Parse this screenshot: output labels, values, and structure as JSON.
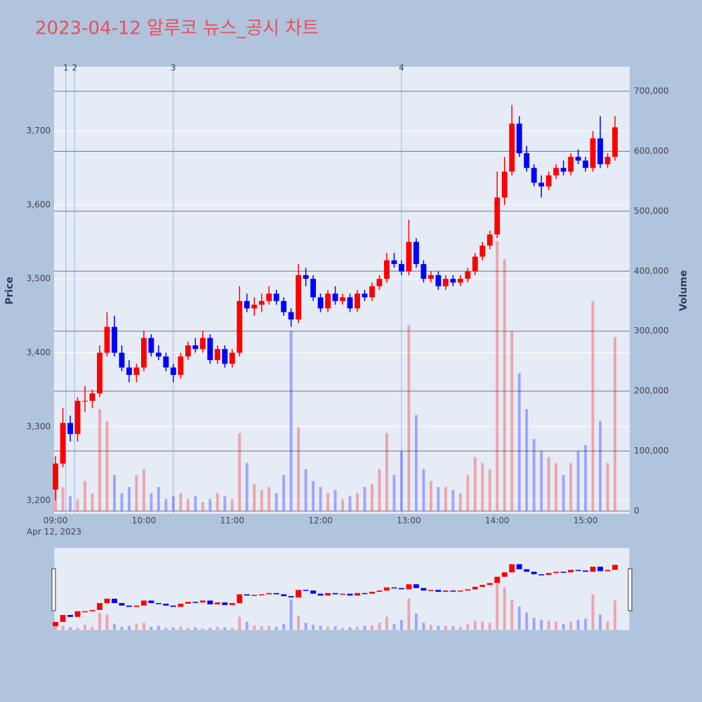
{
  "chart_data": {
    "type": "candlestick",
    "title": "2023-04-12 알루코 뉴스_공시 차트",
    "y_label": "Price",
    "y2_label": "Volume",
    "x_date_label": "Apr 12, 2023",
    "up_color": "#ff0000",
    "down_color": "#0000ff",
    "grid": true,
    "range_slider": true,
    "x": [
      "09:00",
      "09:05",
      "09:10",
      "09:15",
      "09:20",
      "09:25",
      "09:30",
      "09:35",
      "09:40",
      "09:45",
      "09:50",
      "09:55",
      "10:00",
      "10:05",
      "10:10",
      "10:15",
      "10:20",
      "10:25",
      "10:30",
      "10:35",
      "10:40",
      "10:45",
      "10:50",
      "10:55",
      "11:00",
      "11:05",
      "11:10",
      "11:15",
      "11:20",
      "11:25",
      "11:30",
      "11:35",
      "11:40",
      "11:45",
      "11:50",
      "11:55",
      "12:00",
      "12:05",
      "12:10",
      "12:15",
      "12:20",
      "12:25",
      "12:30",
      "12:35",
      "12:40",
      "12:45",
      "12:50",
      "12:55",
      "13:00",
      "13:05",
      "13:10",
      "13:15",
      "13:20",
      "13:25",
      "13:30",
      "13:35",
      "13:40",
      "13:45",
      "13:50",
      "13:55",
      "14:00",
      "14:05",
      "14:10",
      "14:15",
      "14:20",
      "14:25",
      "14:30",
      "14:35",
      "14:40",
      "14:45",
      "14:50",
      "14:55",
      "15:00",
      "15:05",
      "15:10",
      "15:15",
      "15:20"
    ],
    "open": [
      3215,
      3250,
      3305,
      3290,
      3335,
      3335,
      3345,
      3400,
      3435,
      3400,
      3380,
      3370,
      3380,
      3420,
      3400,
      3395,
      3380,
      3370,
      3395,
      3410,
      3405,
      3420,
      3390,
      3405,
      3385,
      3400,
      3470,
      3460,
      3465,
      3470,
      3480,
      3470,
      3455,
      3445,
      3505,
      3500,
      3475,
      3460,
      3480,
      3470,
      3475,
      3460,
      3480,
      3475,
      3490,
      3500,
      3525,
      3520,
      3510,
      3550,
      3520,
      3500,
      3505,
      3490,
      3500,
      3495,
      3500,
      3510,
      3530,
      3545,
      3560,
      3610,
      3645,
      3710,
      3670,
      3650,
      3630,
      3625,
      3640,
      3650,
      3645,
      3665,
      3660,
      3650,
      3690,
      3655,
      3665
    ],
    "high": [
      3260,
      3325,
      3315,
      3340,
      3355,
      3350,
      3410,
      3455,
      3450,
      3410,
      3390,
      3385,
      3430,
      3425,
      3410,
      3400,
      3385,
      3400,
      3415,
      3420,
      3430,
      3425,
      3410,
      3410,
      3405,
      3490,
      3480,
      3475,
      3480,
      3490,
      3485,
      3475,
      3460,
      3520,
      3515,
      3505,
      3480,
      3485,
      3490,
      3480,
      3480,
      3485,
      3485,
      3495,
      3505,
      3535,
      3535,
      3525,
      3580,
      3555,
      3525,
      3510,
      3510,
      3505,
      3505,
      3505,
      3515,
      3535,
      3550,
      3565,
      3645,
      3665,
      3735,
      3720,
      3680,
      3655,
      3640,
      3645,
      3655,
      3660,
      3670,
      3675,
      3665,
      3700,
      3720,
      3670,
      3720
    ],
    "low": [
      3200,
      3245,
      3280,
      3280,
      3320,
      3325,
      3340,
      3395,
      3395,
      3375,
      3360,
      3360,
      3375,
      3395,
      3390,
      3375,
      3360,
      3365,
      3390,
      3400,
      3400,
      3385,
      3385,
      3380,
      3380,
      3395,
      3455,
      3450,
      3455,
      3465,
      3465,
      3450,
      3435,
      3440,
      3490,
      3470,
      3455,
      3455,
      3465,
      3465,
      3455,
      3455,
      3470,
      3470,
      3485,
      3495,
      3515,
      3505,
      3505,
      3515,
      3495,
      3495,
      3485,
      3485,
      3490,
      3490,
      3495,
      3505,
      3525,
      3540,
      3555,
      3600,
      3640,
      3665,
      3645,
      3625,
      3610,
      3620,
      3635,
      3640,
      3640,
      3655,
      3645,
      3645,
      3650,
      3650,
      3660
    ],
    "close": [
      3250,
      3305,
      3290,
      3335,
      3335,
      3345,
      3400,
      3435,
      3400,
      3380,
      3370,
      3380,
      3420,
      3400,
      3395,
      3380,
      3370,
      3395,
      3410,
      3405,
      3420,
      3390,
      3405,
      3385,
      3400,
      3470,
      3460,
      3465,
      3470,
      3480,
      3470,
      3455,
      3445,
      3505,
      3500,
      3475,
      3460,
      3480,
      3470,
      3475,
      3460,
      3480,
      3475,
      3490,
      3500,
      3525,
      3520,
      3510,
      3550,
      3520,
      3500,
      3505,
      3490,
      3500,
      3495,
      3500,
      3510,
      3530,
      3545,
      3560,
      3610,
      3645,
      3710,
      3670,
      3650,
      3630,
      3625,
      3640,
      3650,
      3645,
      3665,
      3660,
      3650,
      3690,
      3655,
      3665,
      3705
    ],
    "volume": [
      60000,
      40000,
      25000,
      20000,
      50000,
      30000,
      170000,
      150000,
      60000,
      30000,
      40000,
      60000,
      70000,
      30000,
      40000,
      20000,
      25000,
      30000,
      20000,
      25000,
      15000,
      20000,
      30000,
      25000,
      20000,
      130000,
      80000,
      45000,
      35000,
      40000,
      30000,
      60000,
      300000,
      140000,
      70000,
      50000,
      40000,
      30000,
      35000,
      20000,
      25000,
      30000,
      40000,
      45000,
      70000,
      130000,
      60000,
      100000,
      310000,
      160000,
      70000,
      50000,
      40000,
      40000,
      35000,
      30000,
      60000,
      90000,
      80000,
      70000,
      450000,
      420000,
      300000,
      230000,
      170000,
      120000,
      100000,
      90000,
      80000,
      60000,
      80000,
      100000,
      110000,
      350000,
      150000,
      80000,
      290000
    ],
    "xlim": [
      "08:59",
      "15:30"
    ],
    "xticks": [
      "09:00",
      "10:00",
      "11:00",
      "12:00",
      "13:00",
      "14:00",
      "15:00"
    ],
    "ylim": [
      3182,
      3787
    ],
    "yticks": [
      {
        "value": 3200,
        "label": "3,200"
      },
      {
        "value": 3300,
        "label": "3,300"
      },
      {
        "value": 3400,
        "label": "3,400"
      },
      {
        "value": 3500,
        "label": "3,500"
      },
      {
        "value": 3600,
        "label": "3,600"
      },
      {
        "value": 3700,
        "label": "3,700"
      }
    ],
    "y2lim": [
      -4700,
      741000
    ],
    "y2ticks": [
      0,
      {
        "value": 100000,
        "label": "100,000"
      },
      {
        "value": 200000,
        "label": "200,000"
      },
      {
        "value": 300000,
        "label": "300,000"
      },
      {
        "value": 400000,
        "label": "400,000"
      },
      {
        "value": 500000,
        "label": "500,000"
      },
      {
        "value": 600000,
        "label": "600,000"
      },
      {
        "value": 700000,
        "label": "700,000"
      }
    ],
    "annotations": [
      {
        "x": "09:07",
        "text": "1"
      },
      {
        "x": "09:13",
        "text": "2"
      },
      {
        "x": "10:20",
        "text": "3"
      },
      {
        "x": "12:55",
        "text": "4"
      }
    ]
  }
}
